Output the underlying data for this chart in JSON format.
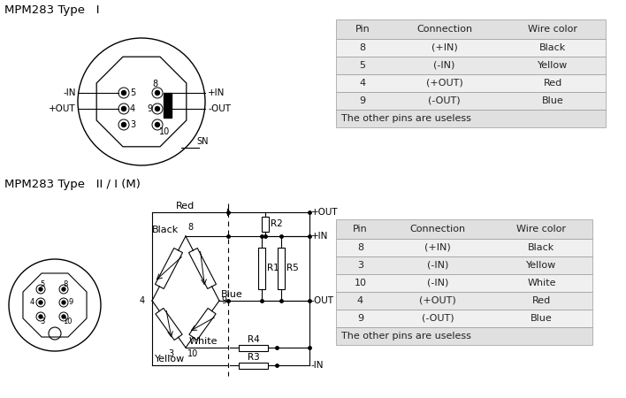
{
  "title1": "MPM283 Type   I",
  "title2": "MPM283 Type   II / I (M)",
  "table1": {
    "headers": [
      "Pin",
      "Connection",
      "Wire color"
    ],
    "rows": [
      [
        "8",
        "(+IN)",
        "Black"
      ],
      [
        "5",
        "(-IN)",
        "Yellow"
      ],
      [
        "4",
        "(+OUT)",
        "Red"
      ],
      [
        "9",
        "(-OUT)",
        "Blue"
      ]
    ],
    "footer": "The other pins are useless",
    "header_bg": "#e0e0e0",
    "row_bg_odd": "#f0f0f0",
    "row_bg_even": "#e8e8e8",
    "footer_bg": "#e0e0e0"
  },
  "table2": {
    "headers": [
      "Pin",
      "Connection",
      "Wire color"
    ],
    "rows": [
      [
        "8",
        "(+IN)",
        "Black"
      ],
      [
        "3",
        "(-IN)",
        "Yellow"
      ],
      [
        "10",
        "(-IN)",
        "White"
      ],
      [
        "4",
        "(+OUT)",
        "Red"
      ],
      [
        "9",
        "(-OUT)",
        "Blue"
      ]
    ],
    "footer": "The other pins are useless",
    "header_bg": "#e0e0e0",
    "row_bg_odd": "#f0f0f0",
    "row_bg_even": "#e8e8e8",
    "footer_bg": "#e0e0e0"
  },
  "bg_color": "#ffffff",
  "line_color": "#000000"
}
